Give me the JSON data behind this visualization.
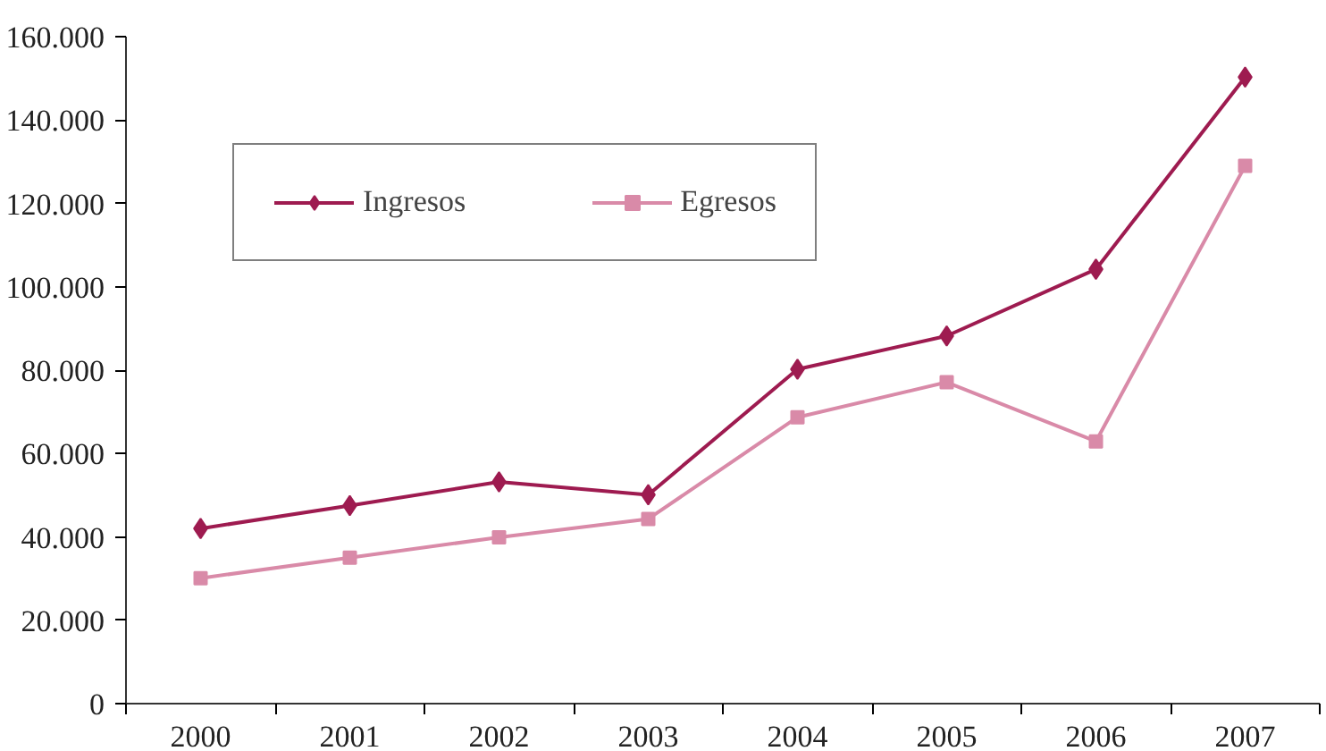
{
  "chart_data": {
    "type": "line",
    "categories": [
      "2000",
      "2001",
      "2002",
      "2003",
      "2004",
      "2005",
      "2006",
      "2007"
    ],
    "series": [
      {
        "name": "Ingresos",
        "color": "#9e1b50",
        "marker": "diamond",
        "values": [
          42000,
          47500,
          53200,
          50100,
          80200,
          88200,
          104200,
          150300
        ]
      },
      {
        "name": "Egresos",
        "color": "#d98aa8",
        "marker": "square",
        "values": [
          30100,
          35000,
          39900,
          44300,
          68700,
          77100,
          62900,
          129000
        ]
      }
    ],
    "ylim": [
      0,
      160000
    ],
    "yticks": [
      {
        "value": 0,
        "label": "0"
      },
      {
        "value": 20000,
        "label": "20.000"
      },
      {
        "value": 40000,
        "label": "40.000"
      },
      {
        "value": 60000,
        "label": "60.000"
      },
      {
        "value": 80000,
        "label": "80.000"
      },
      {
        "value": 100000,
        "label": "100.000"
      },
      {
        "value": 120000,
        "label": "120.000"
      },
      {
        "value": 140000,
        "label": "140.000"
      },
      {
        "value": 160000,
        "label": "160.000"
      }
    ],
    "grid": false,
    "legend": "top left",
    "line_style": "solid"
  }
}
